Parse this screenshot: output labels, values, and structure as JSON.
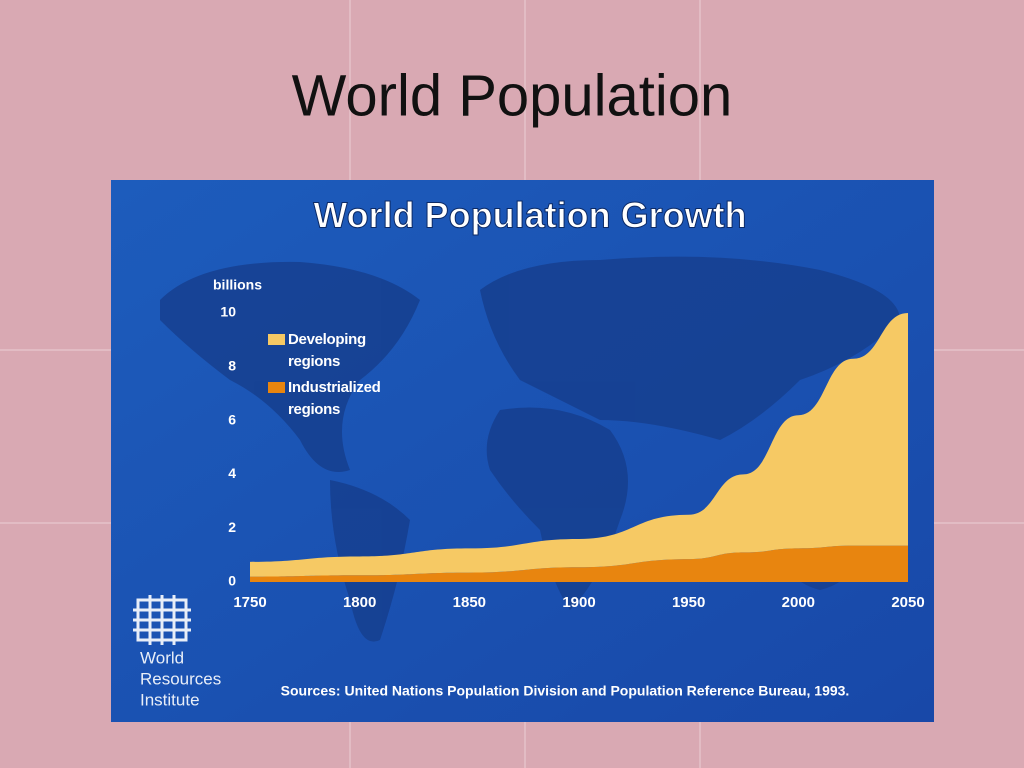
{
  "slide": {
    "title": "World Population"
  },
  "chart_data": {
    "type": "area",
    "stacked": true,
    "title": "World Population Growth",
    "ylabel": "billions",
    "x": [
      1750,
      1800,
      1850,
      1900,
      1950,
      1975,
      2000,
      2025,
      2050
    ],
    "series": [
      {
        "name": "Industrialized regions",
        "color": "#e8850f",
        "values": [
          0.2,
          0.25,
          0.35,
          0.55,
          0.85,
          1.1,
          1.25,
          1.35,
          1.35
        ]
      },
      {
        "name": "Developing regions",
        "color": "#f6c964",
        "values": [
          0.55,
          0.7,
          0.9,
          1.05,
          1.65,
          2.9,
          4.95,
          6.95,
          8.65
        ]
      }
    ],
    "xlim": [
      1750,
      2050
    ],
    "ylim": [
      0,
      10
    ],
    "xticks": [
      1750,
      1800,
      1850,
      1900,
      1950,
      2000,
      2050
    ],
    "yticks": [
      0,
      2,
      4,
      6,
      8,
      10
    ],
    "legend": "upper left",
    "source": "Sources: United Nations Population Division and Population Reference Bureau, 1993."
  },
  "logo": {
    "lines": [
      "World",
      "Resources",
      "Institute"
    ]
  }
}
